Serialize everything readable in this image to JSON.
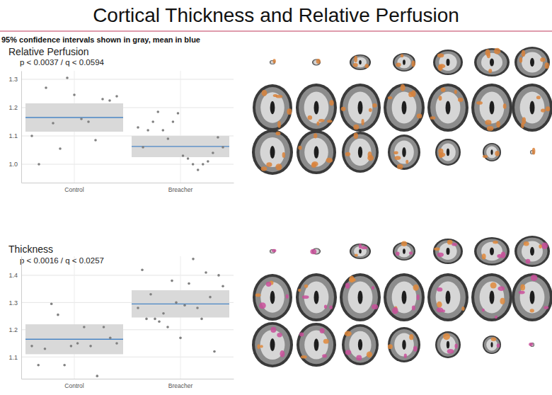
{
  "slide": {
    "title": "Cortical Thickness and Relative Perfusion",
    "note": "95% confidence intervals shown in gray, mean in blue"
  },
  "chart_data": [
    {
      "type": "scatter",
      "title": "Relative Perfusion",
      "subtitle": "p < 0.0037 / q < 0.0594",
      "categories": [
        "Control",
        "Breacher"
      ],
      "points": [
        [
          1.1,
          1.0,
          1.27,
          1.145,
          1.055,
          1.305,
          1.245,
          1.16,
          1.15,
          1.085,
          1.23,
          1.225,
          1.24
        ],
        [
          1.13,
          1.06,
          1.12,
          1.15,
          1.185,
          1.12,
          1.09,
          1.15,
          1.18,
          1.03,
          1.02,
          1.0,
          0.98,
          1.0,
          1.01,
          1.04,
          1.095,
          1.06
        ]
      ],
      "mean": [
        1.165,
        1.063
      ],
      "ci_lower": [
        1.115,
        1.025
      ],
      "ci_upper": [
        1.215,
        1.1
      ],
      "color": "#808080",
      "ylim": [
        0.935,
        1.33
      ],
      "yticks": [
        {
          "value": 1,
          "label": "1.0"
        },
        1.1,
        1.2,
        1.3
      ],
      "grid": true
    },
    {
      "type": "scatter",
      "title": "Thickness",
      "subtitle": "p < 0.0016 / q < 0.0257",
      "categories": [
        "Control",
        "Breacher"
      ],
      "points": [
        [
          1.14,
          1.07,
          1.13,
          1.295,
          1.255,
          1.07,
          1.14,
          1.15,
          1.21,
          1.14,
          1.03,
          1.21,
          1.17,
          1.15
        ],
        [
          1.28,
          1.42,
          1.24,
          1.33,
          1.24,
          1.23,
          1.26,
          1.21,
          1.38,
          1.3,
          1.17,
          1.29,
          1.37,
          1.46,
          1.28,
          1.24,
          1.41,
          1.32,
          1.12,
          1.4,
          1.36
        ]
      ],
      "mean": [
        1.165,
        1.295
      ],
      "ci_lower": [
        1.11,
        1.245
      ],
      "ci_upper": [
        1.22,
        1.345
      ],
      "color": "#808080",
      "ylim": [
        1.02,
        1.47
      ],
      "yticks": [
        1.1,
        1.2,
        1.3,
        1.4
      ],
      "grid": true
    }
  ]
}
